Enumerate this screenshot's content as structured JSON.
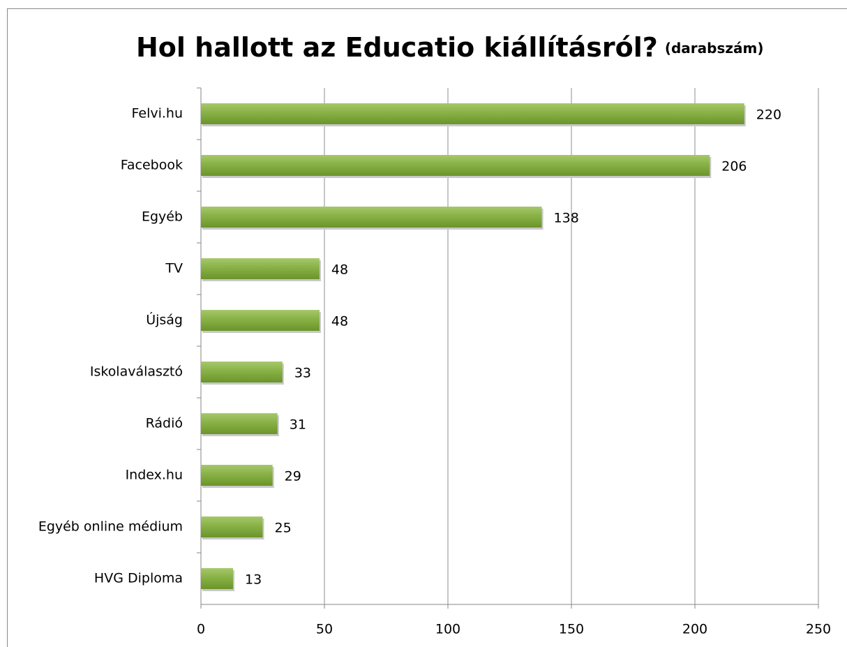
{
  "chart_data": {
    "type": "bar",
    "orientation": "horizontal",
    "title": "Hol hallott az Educatio kiállításról?",
    "subtitle": "(darabszám)",
    "categories": [
      "Felvi.hu",
      "Facebook",
      "Egyéb",
      "TV",
      "Újság",
      "Iskolaválasztó",
      "Rádió",
      "Index.hu",
      "Egyéb online médium",
      "HVG Diploma"
    ],
    "values": [
      220,
      206,
      138,
      48,
      48,
      33,
      31,
      29,
      25,
      13
    ],
    "color": "#7fa93a",
    "xlim": [
      0,
      250
    ],
    "xticks": [
      0,
      50,
      100,
      150,
      200,
      250
    ],
    "grid": true
  }
}
